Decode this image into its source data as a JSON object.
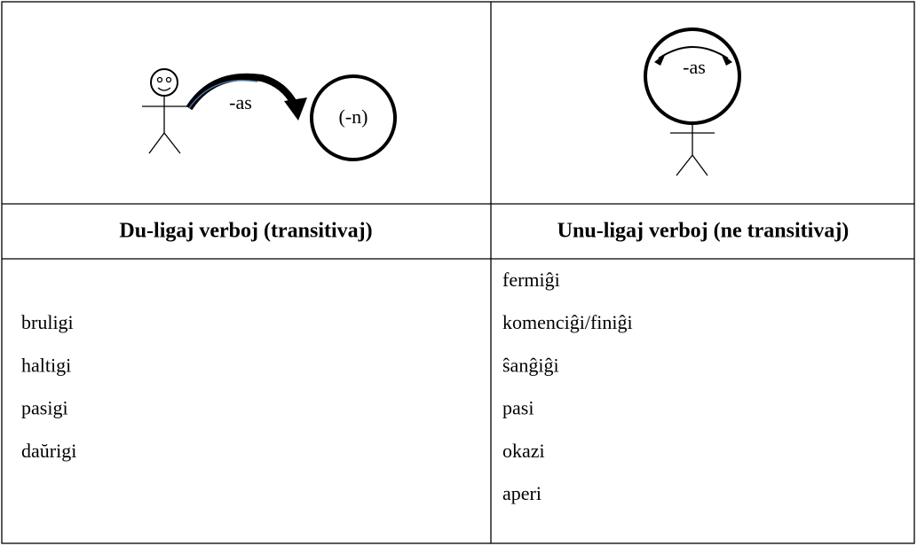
{
  "diagrams": {
    "transitive": {
      "arrow_label": "-as",
      "object_label": "(-n)"
    },
    "intransitive": {
      "arrow_label": "-as"
    }
  },
  "table": {
    "headers": [
      "Du-ligaj verboj (transitivaj)",
      "Unu-ligaj verboj (ne transitivaj)"
    ],
    "rows": [
      [
        null,
        "fermiĝi"
      ],
      [
        "bruligi",
        "komenciĝi/finiĝi"
      ],
      [
        "haltigi",
        "ŝanĝiĝi"
      ],
      [
        "pasigi",
        "pasi"
      ],
      [
        "daŭrigi",
        "okazi"
      ],
      [
        null,
        "aperi"
      ]
    ]
  }
}
